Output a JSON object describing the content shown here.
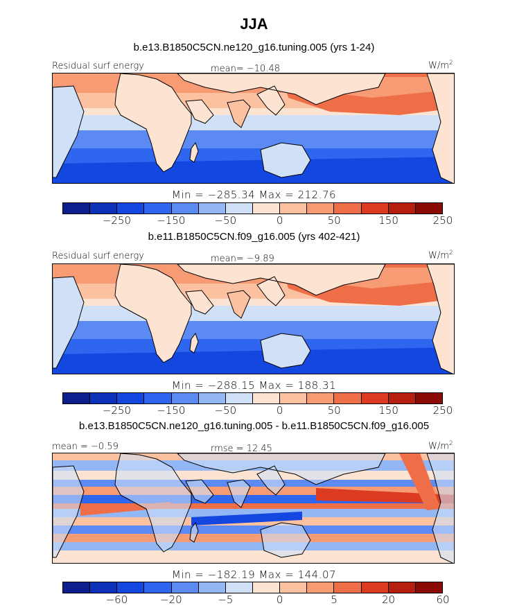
{
  "title": "JJA",
  "panels": [
    {
      "title": "b.e13.B1850C5CN.ne120_g16.tuning.005 (yrs 1-24)",
      "left_label": "Residual surf energy",
      "center_label": "mean= −10.48",
      "units_base": "W/m",
      "units_sup": "2",
      "minmax": "Min = −285.34  Max = 212.76",
      "levels": [
        "−250",
        "−150",
        "−50",
        "0",
        "50",
        "150",
        "250"
      ],
      "type": "mean"
    },
    {
      "title": "b.e11.B1850C5CN.f09_g16.005 (yrs 402-421)",
      "left_label": "Residual surf energy",
      "center_label": "mean=  −9.89",
      "units_base": "W/m",
      "units_sup": "2",
      "minmax": "Min = −288.15  Max = 188.31",
      "levels": [
        "−250",
        "−150",
        "−50",
        "0",
        "50",
        "150",
        "250"
      ],
      "type": "mean"
    },
    {
      "title": "b.e13.B1850C5CN.ne120_g16.tuning.005 - b.e11.B1850C5CN.f09_g16.005",
      "left_label": "mean =  −0.59",
      "center_label": "rmse =  12.45",
      "units_base": "W/m",
      "units_sup": "2",
      "minmax": "Min = −182.19  Max = 144.07",
      "levels": [
        "−60",
        "−20",
        "−5",
        "0",
        "5",
        "20",
        "60"
      ],
      "type": "diff"
    }
  ],
  "palette": {
    "colors": [
      "#0c1f8c",
      "#0d31b8",
      "#1447e0",
      "#2f66ef",
      "#5a8af2",
      "#93b6f5",
      "#cfe0f7",
      "#fde3d2",
      "#fbc1a1",
      "#f69b73",
      "#ee6e47",
      "#dc3b21",
      "#b61e10",
      "#8a0a06"
    ],
    "land_outline": "#000000",
    "background": "#ffffff"
  }
}
